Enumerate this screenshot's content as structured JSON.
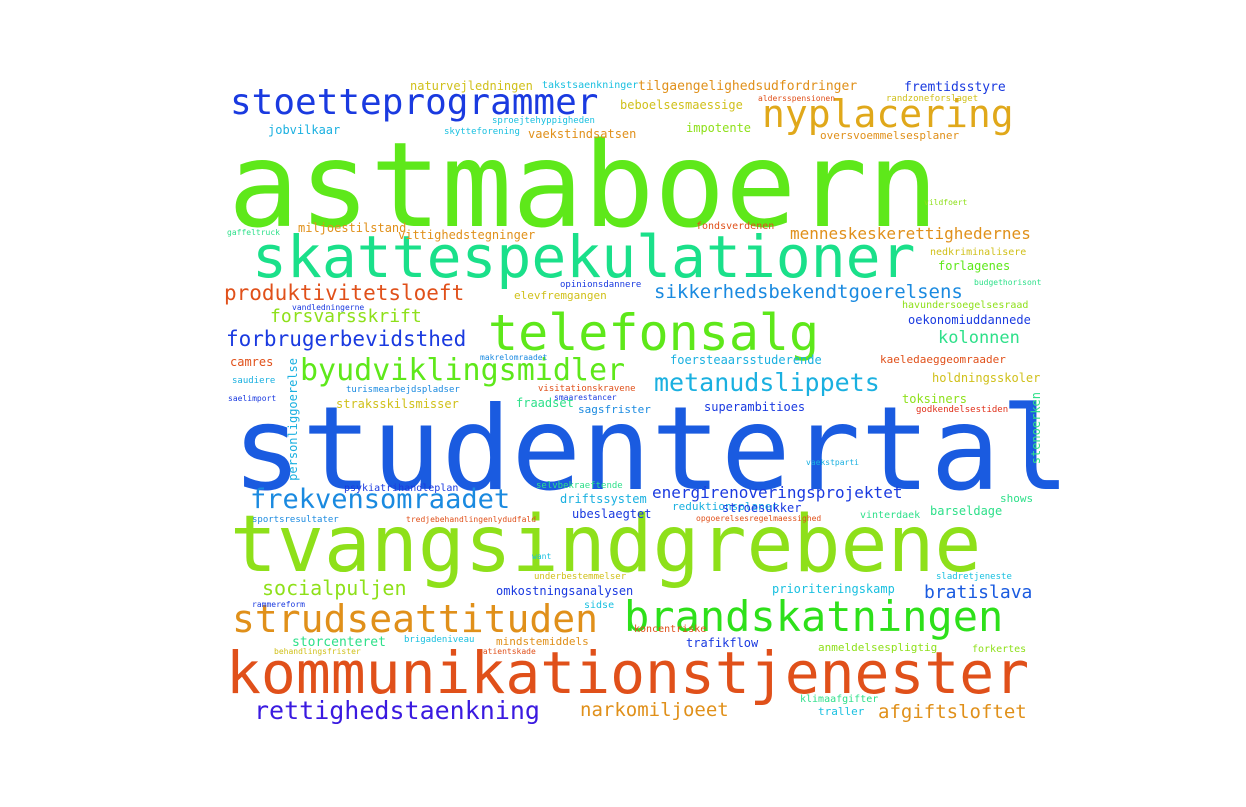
{
  "words": [
    {
      "text": "astmaboern",
      "color": "#5ee81a"
    },
    {
      "text": "studentertal",
      "color": "#1a5be0"
    },
    {
      "text": "tvangsindgrebene",
      "color": "#8ee01a"
    },
    {
      "text": "kommunikationstjenester",
      "color": "#e0501a"
    },
    {
      "text": "skattespekulationer",
      "color": "#1ae08a"
    },
    {
      "text": "telefonsalg",
      "color": "#5ee81a"
    },
    {
      "text": "stoetteprogrammer",
      "color": "#1a3ae0"
    },
    {
      "text": "nyplacering",
      "color": "#e0a81a"
    },
    {
      "text": "brandskatningen",
      "color": "#2ee01a"
    },
    {
      "text": "strudseattituden",
      "color": "#e0901a"
    },
    {
      "text": "byudviklingsmidler",
      "color": "#5ee81a"
    },
    {
      "text": "frekvensomraadet",
      "color": "#1a8ae0"
    },
    {
      "text": "produktivitetsloeft",
      "color": "#e0501a"
    },
    {
      "text": "sikkerhedsbekendtgoerelsens",
      "color": "#1a8ae0"
    },
    {
      "text": "metanudslippets",
      "color": "#1ab0e0"
    },
    {
      "text": "forbrugerbevidsthed",
      "color": "#1a3ae0"
    },
    {
      "text": "rettighedstaenkning",
      "color": "#3a1ae0"
    },
    {
      "text": "socialpuljen",
      "color": "#8ee01a"
    },
    {
      "text": "energirenoveringsprojektet",
      "color": "#1a3ae0"
    },
    {
      "text": "forsvarsskrift",
      "color": "#8ee01a"
    },
    {
      "text": "narkomiljoeet",
      "color": "#e0901a"
    },
    {
      "text": "afgiftsloftet",
      "color": "#e0901a"
    },
    {
      "text": "kolonnen",
      "color": "#2ee08a"
    },
    {
      "text": "bratislava",
      "color": "#1a5be0"
    },
    {
      "text": "menneskeskerettighedernes",
      "color": "#e0901a"
    },
    {
      "text": "storcenteret",
      "color": "#2ee08a"
    },
    {
      "text": "naturvejledningen",
      "color": "#d0c01a"
    },
    {
      "text": "takstsaenkninger",
      "color": "#1ac0e0"
    },
    {
      "text": "tilgaengelighedsudfordringer",
      "color": "#e0901a"
    },
    {
      "text": "fremtidsstyre",
      "color": "#1a3ae0"
    },
    {
      "text": "aldersspensionen",
      "color": "#e0501a"
    },
    {
      "text": "randzoneforslaget",
      "color": "#d0c01a"
    },
    {
      "text": "beboelsesmaessige",
      "color": "#d0c01a"
    },
    {
      "text": "sproejtehyppigheden",
      "color": "#1ac0e0"
    },
    {
      "text": "jobvilkaar",
      "color": "#1ab0e0"
    },
    {
      "text": "skytteforening",
      "color": "#1ac0e0"
    },
    {
      "text": "vaekstindsatsen",
      "color": "#e0901a"
    },
    {
      "text": "impotente",
      "color": "#8ee01a"
    },
    {
      "text": "oversvoemmelsesplaner",
      "color": "#e0901a"
    },
    {
      "text": "vildfoert",
      "color": "#8ee01a"
    },
    {
      "text": "miljoestilstand",
      "color": "#e0901a"
    },
    {
      "text": "fondsverdenen",
      "color": "#e0501a"
    },
    {
      "text": "gaffeltruck",
      "color": "#2ee08a"
    },
    {
      "text": "vittighedstegninger",
      "color": "#e0901a"
    },
    {
      "text": "nedkriminalisere",
      "color": "#d0c01a"
    },
    {
      "text": "forlagenes",
      "color": "#5ee81a"
    },
    {
      "text": "opinionsdannere",
      "color": "#1a3ae0"
    },
    {
      "text": "elevfremgangen",
      "color": "#d0c01a"
    },
    {
      "text": "budgethorisont",
      "color": "#2ee08a"
    },
    {
      "text": "vandledningerne",
      "color": "#1a3ae0"
    },
    {
      "text": "havundersoegelsesraad",
      "color": "#8ee01a"
    },
    {
      "text": "oekonomiuddannede",
      "color": "#1a3ae0"
    },
    {
      "text": "camres",
      "color": "#e0501a"
    },
    {
      "text": "makrelomraadet",
      "color": "#1a8ae0"
    },
    {
      "text": "foersteaarsstuderende",
      "color": "#1ab0e0"
    },
    {
      "text": "kaeledaeggeomraader",
      "color": "#e0501a"
    },
    {
      "text": "saudiere",
      "color": "#1ab0e0"
    },
    {
      "text": "turismearbejdspladser",
      "color": "#1a8ae0"
    },
    {
      "text": "visitationskravene",
      "color": "#e0501a"
    },
    {
      "text": "holdningsskoler",
      "color": "#d0c01a"
    },
    {
      "text": "saelimport",
      "color": "#1a3ae0"
    },
    {
      "text": "smaarestancer",
      "color": "#1a3ae0"
    },
    {
      "text": "toksiners",
      "color": "#8ee01a"
    },
    {
      "text": "straksskilsmisser",
      "color": "#d0c01a"
    },
    {
      "text": "fraadset",
      "color": "#2ee08a"
    },
    {
      "text": "sagsfrister",
      "color": "#1a8ae0"
    },
    {
      "text": "superambitioes",
      "color": "#1a3ae0"
    },
    {
      "text": "godkendelsestiden",
      "color": "#e0301a"
    },
    {
      "text": "personliggoerelse",
      "color": "#1ab0e0"
    },
    {
      "text": "stenoerken",
      "color": "#2ee08a"
    },
    {
      "text": "vaekstparti",
      "color": "#1ab0e0"
    },
    {
      "text": "psykiatrihandleplan",
      "color": "#1a3ae0"
    },
    {
      "text": "selvbekraeftende",
      "color": "#2ee08a"
    },
    {
      "text": "driftssystem",
      "color": "#1ab0e0"
    },
    {
      "text": "shows",
      "color": "#2ee08a"
    },
    {
      "text": "reduktionsplaner",
      "color": "#1ab0e0"
    },
    {
      "text": "stroesukker",
      "color": "#1a3ae0"
    },
    {
      "text": "ubeslaegtet",
      "color": "#1a3ae0"
    },
    {
      "text": "barseldage",
      "color": "#2ee08a"
    },
    {
      "text": "sportsresultater",
      "color": "#1a8ae0"
    },
    {
      "text": "tredjebehandlingenlydudfald",
      "color": "#e0501a"
    },
    {
      "text": "opgoerelsesregelmaessighed",
      "color": "#e0501a"
    },
    {
      "text": "vinterdaek",
      "color": "#2ee08a"
    },
    {
      "text": "want",
      "color": "#1ac0e0"
    },
    {
      "text": "omkostningsanalysen",
      "color": "#1a3ae0"
    },
    {
      "text": "underbestemmelser",
      "color": "#d0c01a"
    },
    {
      "text": "prioriteringskamp",
      "color": "#1ac0e0"
    },
    {
      "text": "sladretjeneste",
      "color": "#1ac0e0"
    },
    {
      "text": "rammereform",
      "color": "#1a3ae0"
    },
    {
      "text": "sidse",
      "color": "#1ac0e0"
    },
    {
      "text": "koncentriske",
      "color": "#e0501a"
    },
    {
      "text": "brigadeniveau",
      "color": "#1ac0e0"
    },
    {
      "text": "mindstemiddels",
      "color": "#e0901a"
    },
    {
      "text": "trafikflow",
      "color": "#1a3ae0"
    },
    {
      "text": "anmeldelsespligtig",
      "color": "#8ee01a"
    },
    {
      "text": "forkertes",
      "color": "#8ee01a"
    },
    {
      "text": "behandlingsfrister",
      "color": "#d0c01a"
    },
    {
      "text": "patientskade",
      "color": "#e0501a"
    },
    {
      "text": "klimaafgifter",
      "color": "#2ee08a"
    },
    {
      "text": "traller",
      "color": "#1ac0e0"
    }
  ]
}
